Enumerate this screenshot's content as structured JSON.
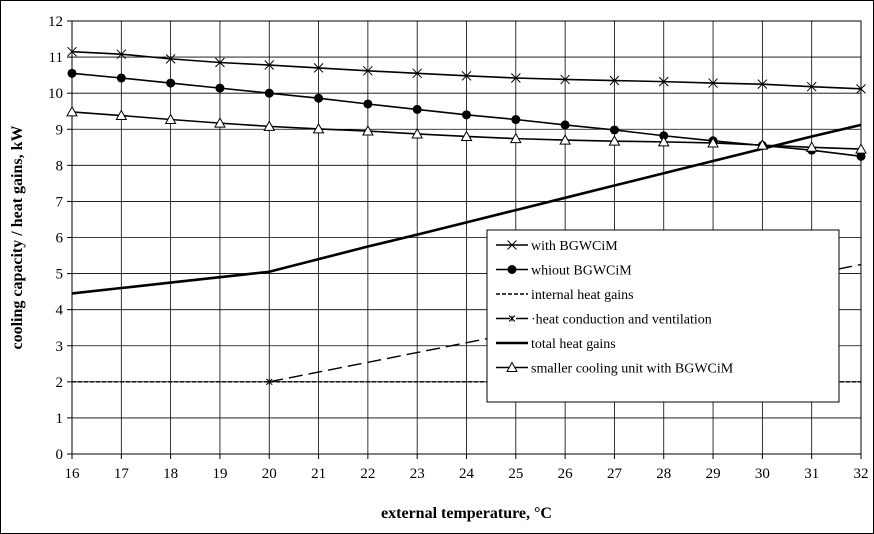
{
  "chart_data": {
    "type": "line",
    "xlabel": "external temperature, °C",
    "ylabel": "cooling capacity / heat gains, kW",
    "xlim": [
      16,
      32
    ],
    "ylim": [
      0,
      12
    ],
    "xticks": [
      "16",
      "17",
      "18",
      "19",
      "20",
      "21",
      "22",
      "23",
      "24",
      "25",
      "26",
      "27",
      "28",
      "29",
      "30",
      "31",
      "32"
    ],
    "yticks": [
      "0",
      "1",
      "2",
      "3",
      "4",
      "5",
      "6",
      "7",
      "8",
      "9",
      "10",
      "11",
      "12"
    ],
    "grid": true,
    "legend_position": "center-right",
    "series": [
      {
        "name": "with BGWCiM",
        "marker": "x",
        "style": "solid",
        "x": [
          16,
          17,
          18,
          19,
          20,
          21,
          22,
          23,
          24,
          25,
          26,
          27,
          28,
          29,
          30,
          31,
          32
        ],
        "values": [
          11.15,
          11.08,
          10.95,
          10.85,
          10.78,
          10.7,
          10.62,
          10.55,
          10.48,
          10.42,
          10.38,
          10.35,
          10.32,
          10.28,
          10.25,
          10.18,
          10.12
        ]
      },
      {
        "name": "whiout BGWCiM",
        "marker": "circle",
        "style": "solid",
        "x": [
          16,
          17,
          18,
          19,
          20,
          21,
          22,
          23,
          24,
          25,
          26,
          27,
          28,
          29,
          30,
          31,
          32
        ],
        "values": [
          10.55,
          10.42,
          10.28,
          10.14,
          10.0,
          9.86,
          9.7,
          9.55,
          9.4,
          9.27,
          9.12,
          8.98,
          8.82,
          8.68,
          8.55,
          8.42,
          8.25
        ]
      },
      {
        "name": "internal heat gains",
        "marker": "none",
        "style": "dashed-fine",
        "x": [
          16,
          32
        ],
        "values": [
          2.0,
          2.0
        ]
      },
      {
        "name": "heat conduction and ventilation",
        "marker": "x-small",
        "style": "dashed",
        "x": [
          20,
          32
        ],
        "values": [
          2.0,
          5.25
        ]
      },
      {
        "name": "total heat gains",
        "marker": "none",
        "style": "bold",
        "x": [
          16,
          17,
          18,
          19,
          20,
          21,
          22,
          23,
          24,
          25,
          26,
          27,
          28,
          29,
          30,
          31,
          32
        ],
        "values": [
          4.45,
          4.6,
          4.75,
          4.9,
          5.05,
          5.4,
          5.75,
          6.08,
          6.42,
          6.76,
          7.1,
          7.44,
          7.78,
          8.12,
          8.46,
          8.8,
          9.12
        ]
      },
      {
        "name": "smaller cooling unit with BGWCiM",
        "marker": "triangle",
        "style": "solid",
        "x": [
          16,
          17,
          18,
          19,
          20,
          21,
          22,
          23,
          24,
          25,
          26,
          27,
          28,
          29,
          30,
          31,
          32
        ],
        "values": [
          9.48,
          9.38,
          9.27,
          9.17,
          9.08,
          9.01,
          8.95,
          8.87,
          8.8,
          8.74,
          8.7,
          8.67,
          8.65,
          8.62,
          8.56,
          8.5,
          8.45
        ]
      }
    ]
  },
  "legend": {
    "items": [
      "with BGWCiM",
      "whiout BGWCiM",
      "internal heat gains",
      "·heat conduction and ventilation",
      "total heat gains",
      "smaller cooling unit with BGWCiM"
    ]
  }
}
